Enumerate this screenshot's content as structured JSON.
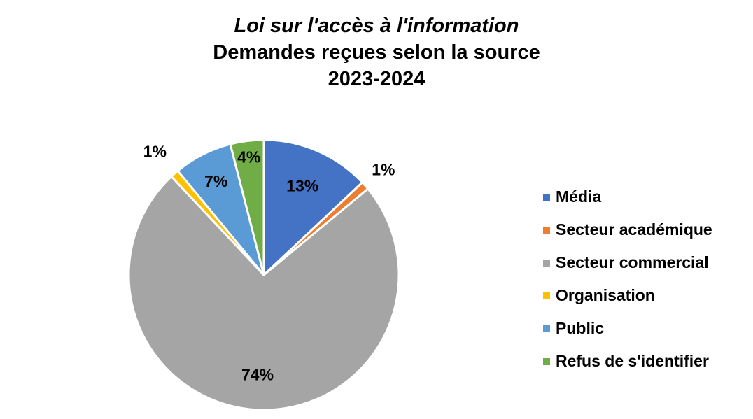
{
  "chart_data": {
    "type": "pie",
    "title": [
      "Loi sur l'accès à l'information",
      "Demandes reçues selon la source",
      "2023-2024"
    ],
    "legend_position": "right",
    "slices": [
      {
        "name": "Média",
        "value": 13,
        "label": "13%",
        "color": "#4472C4"
      },
      {
        "name": "Secteur académique",
        "value": 1,
        "label": "1%",
        "color": "#ED7D31"
      },
      {
        "name": "Secteur commercial",
        "value": 74,
        "label": "74%",
        "color": "#A5A5A5"
      },
      {
        "name": "Organisation",
        "value": 1,
        "label": "1%",
        "color": "#FFC000"
      },
      {
        "name": "Public",
        "value": 7,
        "label": "7%",
        "color": "#5B9BD5"
      },
      {
        "name": "Refus de s'identifier",
        "value": 4,
        "label": "4%",
        "color": "#70AD47"
      }
    ]
  }
}
